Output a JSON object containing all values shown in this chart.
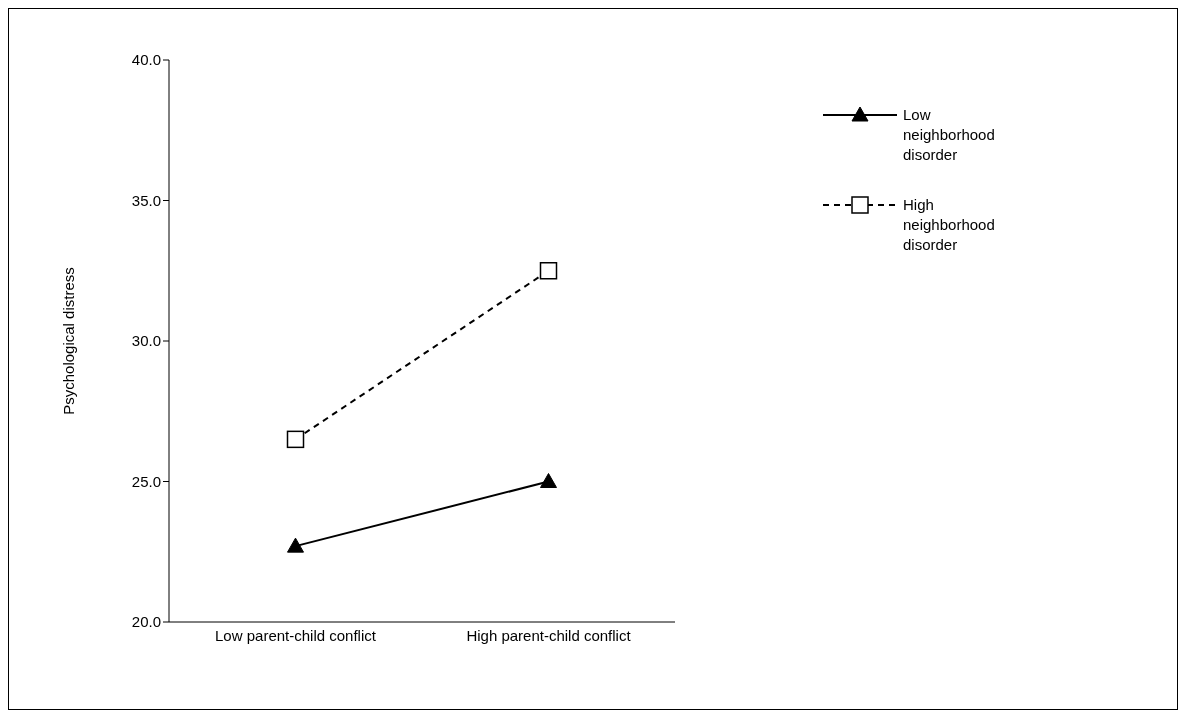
{
  "chart_data": {
    "type": "line",
    "ylabel": "Psychological distress",
    "categories": [
      "Low parent-child conflict",
      "High parent-child conflict"
    ],
    "series": [
      {
        "name": "Low neighborhood disorder",
        "color": "#000000",
        "values": [
          22.7,
          25.0
        ],
        "marker": "triangle",
        "line_style": "solid"
      },
      {
        "name": "High neighborhood disorder",
        "color": "#000000",
        "values": [
          26.5,
          32.5
        ],
        "marker": "square",
        "line_style": "dashed"
      }
    ],
    "ylim": [
      20,
      40
    ],
    "yticks": [
      {
        "value": 20,
        "label": "20.0"
      },
      {
        "value": 25,
        "label": "25.0"
      },
      {
        "value": 30,
        "label": "30.0"
      },
      {
        "value": 35,
        "label": "35.0"
      },
      {
        "value": 40,
        "label": "40.0"
      }
    ],
    "grid": false,
    "legend": "top right"
  }
}
